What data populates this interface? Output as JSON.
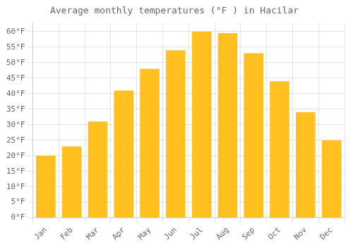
{
  "chart_data": {
    "type": "bar",
    "title": "Average monthly temperatures (°F ) in Hacı̇lar",
    "categories": [
      "Jan",
      "Feb",
      "Mar",
      "Apr",
      "May",
      "Jun",
      "Jul",
      "Aug",
      "Sep",
      "Oct",
      "Nov",
      "Dec"
    ],
    "values": [
      20,
      23,
      31,
      41,
      48,
      54,
      60,
      59.5,
      53,
      44,
      34,
      25
    ],
    "color": "#FFC020",
    "ylim": [
      0,
      63
    ],
    "yticks": [
      {
        "value": 0,
        "label": "0°F"
      },
      {
        "value": 5,
        "label": "5°F"
      },
      {
        "value": 10,
        "label": "10°F"
      },
      {
        "value": 15,
        "label": "15°F"
      },
      {
        "value": 20,
        "label": "20°F"
      },
      {
        "value": 25,
        "label": "25°F"
      },
      {
        "value": 30,
        "label": "30°F"
      },
      {
        "value": 35,
        "label": "35°F"
      },
      {
        "value": 40,
        "label": "40°F"
      },
      {
        "value": 45,
        "label": "45°F"
      },
      {
        "value": 50,
        "label": "50°F"
      },
      {
        "value": 55,
        "label": "55°F"
      },
      {
        "value": 60,
        "label": "60°F"
      }
    ],
    "grid": true
  }
}
